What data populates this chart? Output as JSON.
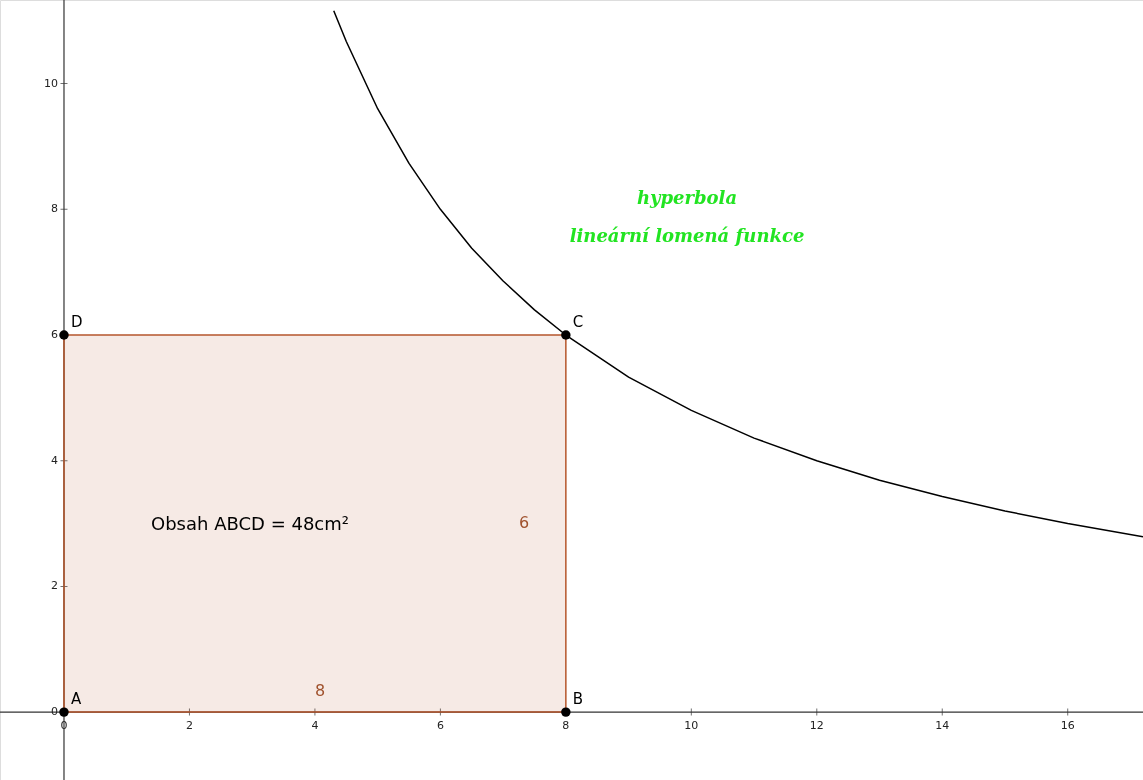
{
  "chart_data": {
    "type": "line",
    "xlim": [
      -1.02,
      17.2
    ],
    "ylim": [
      -1.08,
      11.33
    ],
    "xticks": [
      0,
      2,
      4,
      6,
      8,
      10,
      12,
      14,
      16
    ],
    "yticks": [
      0,
      2,
      4,
      6,
      8,
      10
    ],
    "grid": false,
    "series": [
      {
        "type": "area",
        "color": "#b5562c",
        "x": [
          0,
          8
        ],
        "values": [
          6,
          6
        ]
      },
      {
        "color": "#000000",
        "marker": "none",
        "x": [
          4.3,
          4.5,
          5,
          5.5,
          6,
          6.5,
          7,
          7.5,
          8,
          9,
          10,
          11,
          12,
          13,
          14,
          15,
          16,
          17.2
        ],
        "values": [
          11.16,
          10.67,
          9.6,
          8.73,
          8,
          7.38,
          6.86,
          6.4,
          6,
          5.33,
          4.8,
          4.36,
          4,
          3.69,
          3.43,
          3.2,
          3,
          2.79
        ]
      },
      {
        "type": "scatter",
        "color": "#000000",
        "marker": "circle",
        "x": [
          0,
          8,
          8,
          0
        ],
        "values": [
          0,
          0,
          6,
          6
        ],
        "value_labels": [
          "A",
          "B",
          "C",
          "D"
        ]
      }
    ],
    "annotations": [
      "8",
      "6",
      "Obsah ABCD = 48cm²",
      "hyperbola",
      "lineární lomená  funkce"
    ]
  }
}
